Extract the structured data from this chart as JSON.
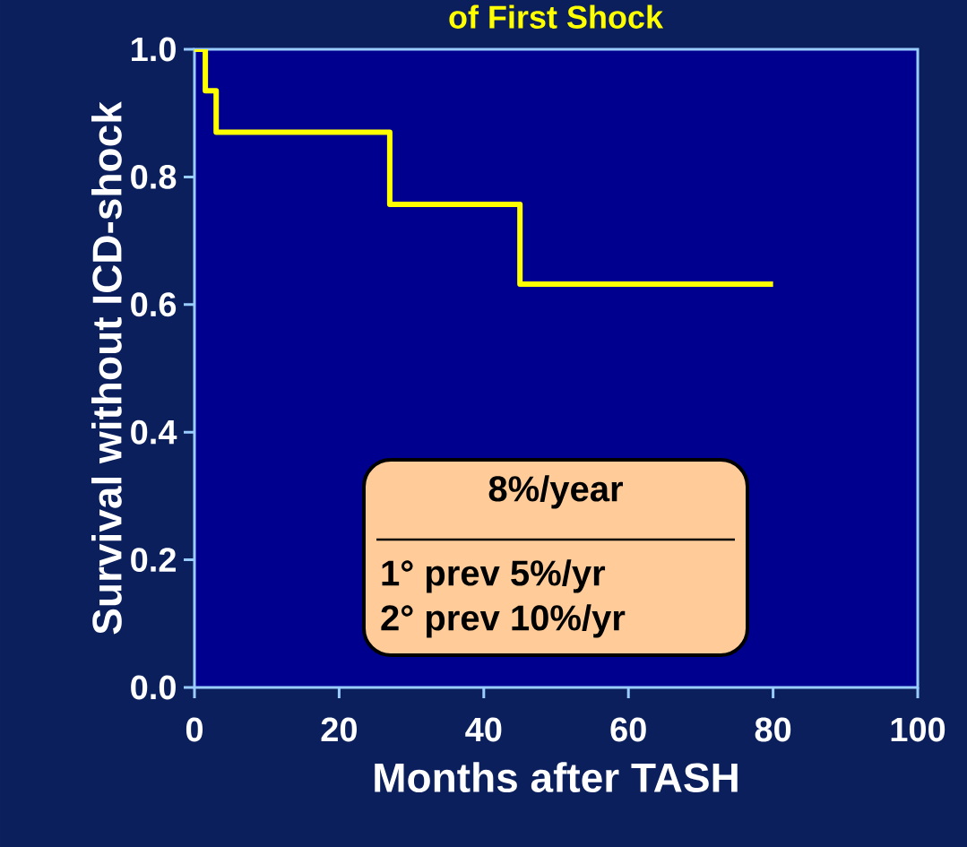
{
  "chart_data": {
    "type": "step",
    "title": "of First Shock",
    "xlabel": "Months after TASH",
    "ylabel": "Survival without ICD-shock",
    "x": [
      0,
      1.5,
      3,
      27,
      45,
      80
    ],
    "series": [
      {
        "color": "#ffff00",
        "values": [
          1.0,
          0.935,
          0.87,
          0.757,
          0.632,
          0.632
        ]
      }
    ],
    "xlim": [
      0,
      100
    ],
    "xticks": [
      0,
      20,
      40,
      60,
      80,
      100
    ],
    "ylim": [
      0,
      1
    ],
    "yticks": [
      {
        "value": 0,
        "label": "0.0"
      },
      {
        "value": 0.2,
        "label": "0.2"
      },
      {
        "value": 0.4,
        "label": "0.4"
      },
      {
        "value": 0.6,
        "label": "0.6"
      },
      {
        "value": 0.8,
        "label": "0.8"
      },
      {
        "value": 1,
        "label": "1.0"
      }
    ],
    "grid": false,
    "marker": "none",
    "line_style": "solid",
    "annotations": [
      "8%/year",
      "1° prev 5%/yr",
      "2° prev 10%/yr"
    ]
  }
}
